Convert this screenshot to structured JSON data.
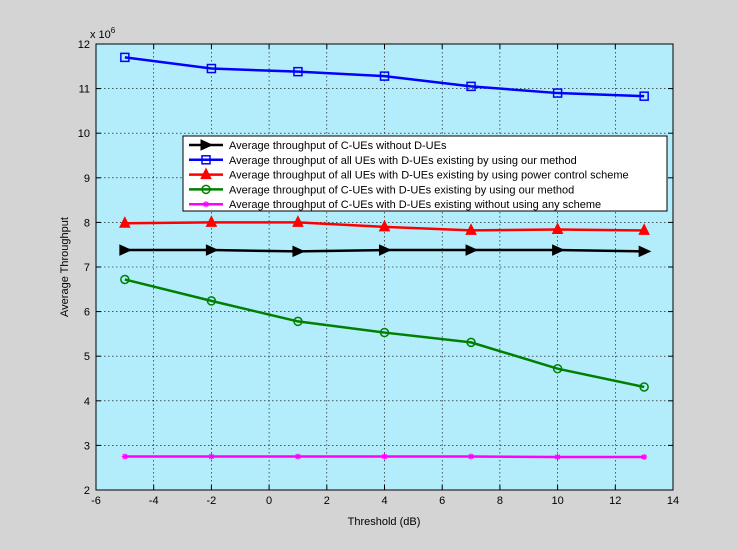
{
  "chart_data": {
    "type": "line",
    "title": "",
    "xlabel": "Threshold (dB)",
    "ylabel": "Average Throughput",
    "y_exponent_label": "x 10",
    "y_exponent_power": "6",
    "xlim": [
      -6,
      14
    ],
    "ylim": [
      2,
      12
    ],
    "xticks": [
      -6,
      -4,
      -2,
      0,
      2,
      4,
      6,
      8,
      10,
      12,
      14
    ],
    "yticks": [
      2,
      3,
      4,
      5,
      6,
      7,
      8,
      9,
      10,
      11,
      12
    ],
    "grid": true,
    "legend_position": "upper-right",
    "colors": {
      "figure_background": "#d4d4d4",
      "plot_background": "#b3ecfb",
      "grid": "#000000"
    },
    "x": [
      -5,
      -2,
      1,
      4,
      7,
      10,
      13
    ],
    "series": [
      {
        "name": "Average throughput of C-UEs without D-UEs",
        "color": "#000000",
        "marker": "triangle-right",
        "values": [
          7.38,
          7.38,
          7.35,
          7.38,
          7.38,
          7.38,
          7.35
        ]
      },
      {
        "name": "Average throughput of all UEs with D-UEs existing by using our method",
        "color": "#0000ff",
        "marker": "square",
        "values": [
          11.7,
          11.45,
          11.38,
          11.28,
          11.05,
          10.9,
          10.83
        ]
      },
      {
        "name": "Average throughput of all UEs with D-UEs existing by using power control scheme",
        "color": "#ff0000",
        "marker": "triangle-up",
        "values": [
          7.98,
          8.0,
          8.0,
          7.9,
          7.82,
          7.84,
          7.82
        ]
      },
      {
        "name": "Average throughput of C-UEs with D-UEs existing by using our method",
        "color": "#008000",
        "marker": "circle",
        "values": [
          6.72,
          6.24,
          5.78,
          5.53,
          5.31,
          4.72,
          4.31
        ]
      },
      {
        "name": "Average throughput of C-UEs with D-UEs existing without using any scheme",
        "color": "#ff00ff",
        "marker": "asterisk",
        "values": [
          2.75,
          2.75,
          2.75,
          2.75,
          2.75,
          2.74,
          2.74
        ]
      }
    ]
  }
}
